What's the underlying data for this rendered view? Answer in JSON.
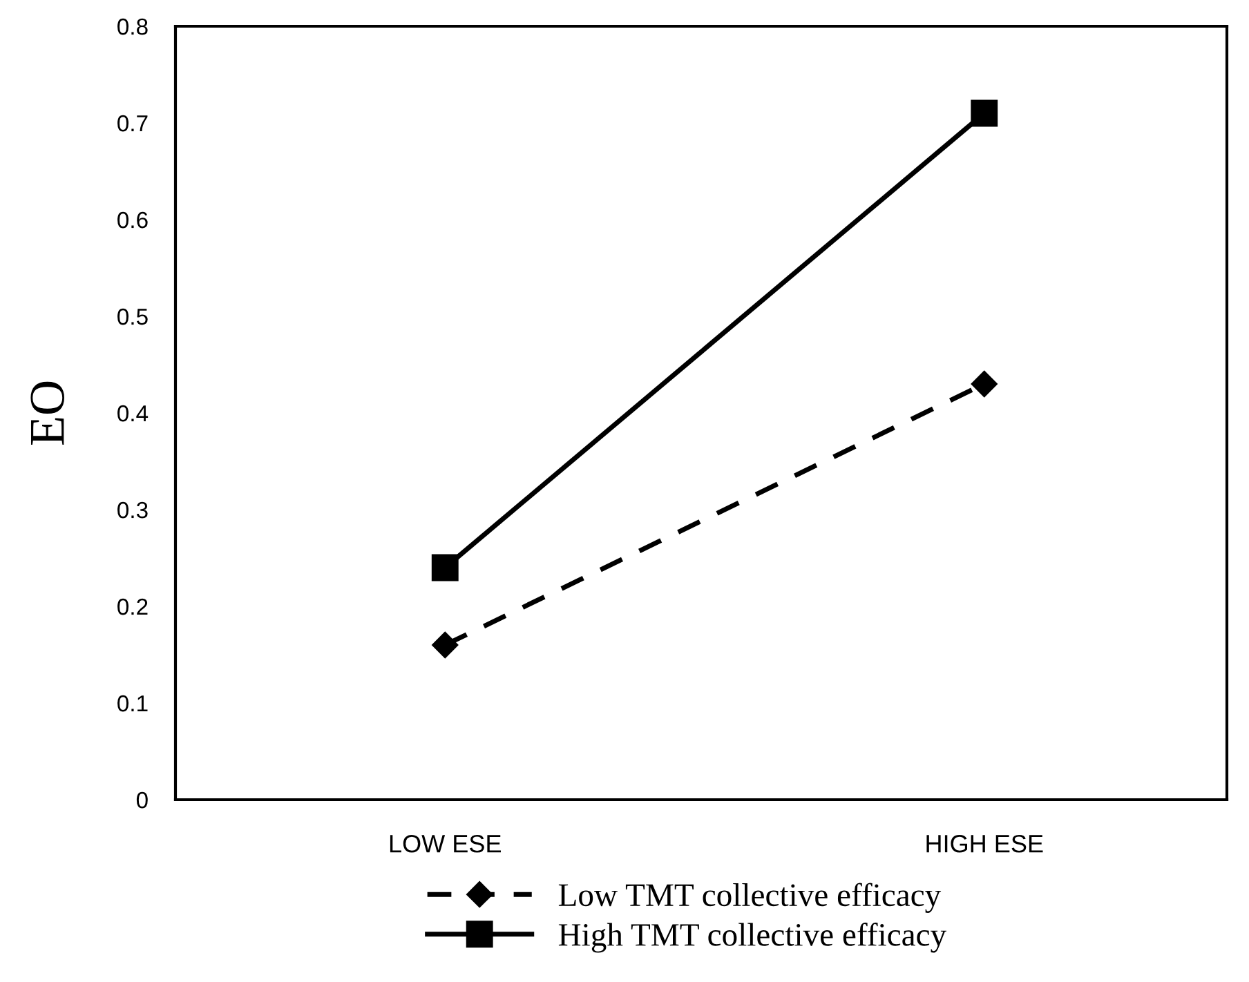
{
  "chart_data": {
    "type": "line",
    "ylabel": "EO",
    "categories": [
      "LOW ESE",
      "HIGH ESE"
    ],
    "series": [
      {
        "name": "Low TMT collective efficacy",
        "color": "#000000",
        "values": [
          0.16,
          0.43
        ],
        "marker": "diamond",
        "line_style": "dashed"
      },
      {
        "name": "High TMT collective efficacy",
        "color": "#000000",
        "values": [
          0.24,
          0.71
        ],
        "marker": "square",
        "line_style": "solid"
      }
    ],
    "ylim": [
      0,
      0.8
    ],
    "yticks": [
      0,
      0.1,
      0.2,
      0.3,
      0.4,
      0.5,
      0.6,
      0.7,
      0.8
    ],
    "grid": false,
    "legend": "bottom"
  }
}
